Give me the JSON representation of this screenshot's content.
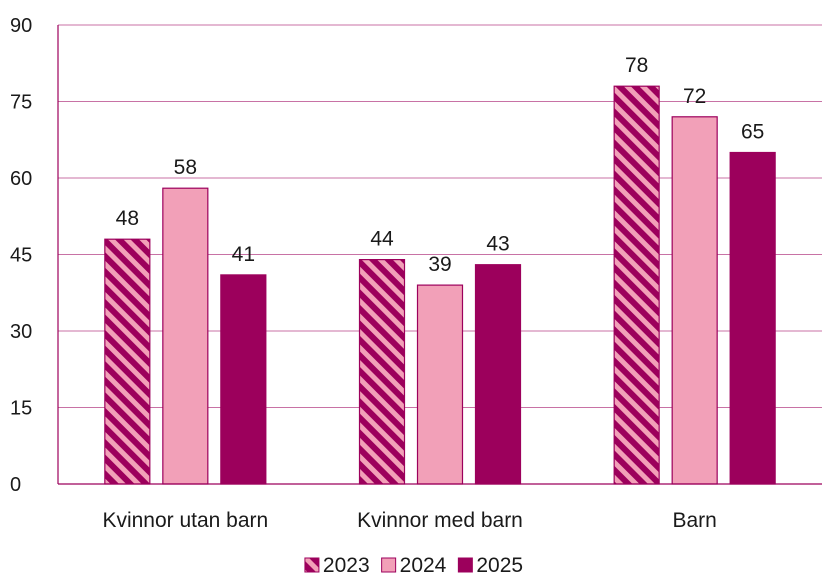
{
  "chart_data": {
    "type": "bar",
    "title": "",
    "xlabel": "",
    "ylabel": "",
    "categories": [
      "Kvinnor utan barn",
      "Kvinnor med barn",
      "Barn"
    ],
    "series": [
      {
        "name": "2023",
        "values": [
          48,
          44,
          78
        ],
        "color": "#9c005c",
        "pattern": "diagonal-stripes"
      },
      {
        "name": "2024",
        "values": [
          58,
          39,
          72
        ],
        "color": "#f2a0b8",
        "pattern": "solid"
      },
      {
        "name": "2025",
        "values": [
          41,
          43,
          65
        ],
        "color": "#9c005c",
        "pattern": "solid"
      }
    ],
    "ylim": [
      0,
      90
    ],
    "yticks": [
      "0",
      "15",
      "30",
      "45",
      "60",
      "75",
      "90"
    ],
    "grid": true,
    "legend_position": "bottom",
    "gridline_color": "#9c005c",
    "axis_color": "#9c005c"
  }
}
